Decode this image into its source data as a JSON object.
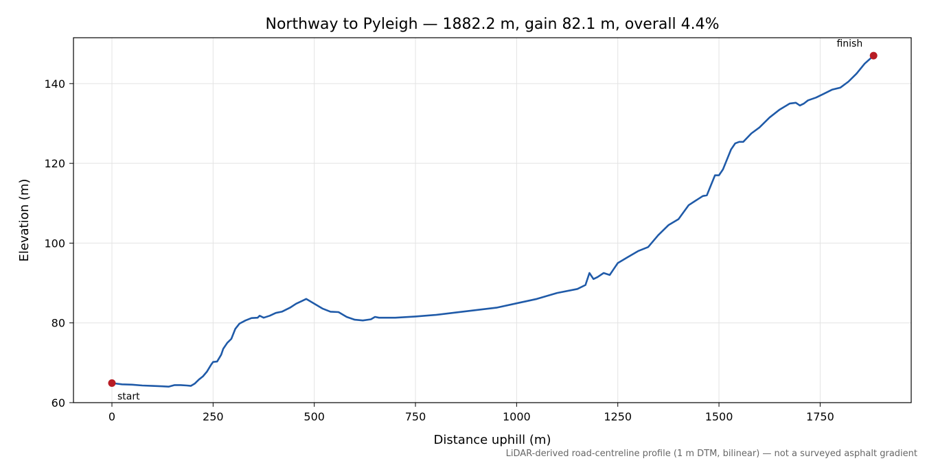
{
  "chart_data": {
    "type": "line",
    "title": "Northway to Pyleigh — 1882.2 m, gain 82.1 m, overall 4.4%",
    "xlabel": "Distance uphill (m)",
    "ylabel": "Elevation (m)",
    "xlim": [
      -95,
      1975
    ],
    "ylim": [
      60,
      151.5
    ],
    "xticks": [
      0,
      250,
      500,
      750,
      1000,
      1250,
      1500,
      1750
    ],
    "yticks": [
      60,
      80,
      100,
      120,
      140
    ],
    "grid": true,
    "line_color": "#1f5aa8",
    "marker_color": "#b81c24",
    "note": "LiDAR-derived road-centreline profile (1 m DTM, bilinear) — not a surveyed asphalt gradient",
    "annotations": [
      {
        "text": "start",
        "x": 0,
        "y": 64.9
      },
      {
        "text": "finish",
        "x": 1882,
        "y": 147.0
      }
    ],
    "series": [
      {
        "x": [
          0,
          25,
          50,
          75,
          100,
          125,
          140,
          155,
          170,
          185,
          195,
          205,
          215,
          225,
          235,
          245,
          250,
          260,
          270,
          275,
          285,
          295,
          305,
          315,
          330,
          345,
          360,
          365,
          375,
          390,
          405,
          420,
          440,
          455,
          470,
          480,
          490,
          500,
          520,
          540,
          560,
          580,
          600,
          620,
          640,
          650,
          660,
          700,
          750,
          800,
          850,
          900,
          950,
          1000,
          1050,
          1100,
          1150,
          1170,
          1180,
          1190,
          1200,
          1215,
          1230,
          1240,
          1250,
          1275,
          1300,
          1325,
          1350,
          1375,
          1400,
          1425,
          1440,
          1460,
          1470,
          1480,
          1490,
          1500,
          1510,
          1520,
          1530,
          1540,
          1550,
          1560,
          1580,
          1600,
          1625,
          1650,
          1675,
          1690,
          1700,
          1710,
          1720,
          1740,
          1760,
          1780,
          1800,
          1820,
          1840,
          1860,
          1882
        ],
        "values": [
          64.9,
          64.6,
          64.5,
          64.3,
          64.2,
          64.1,
          64.0,
          64.4,
          64.4,
          64.3,
          64.2,
          64.8,
          65.8,
          66.6,
          67.8,
          69.5,
          70.2,
          70.3,
          72.0,
          73.5,
          75.0,
          76.0,
          78.5,
          79.8,
          80.6,
          81.2,
          81.3,
          81.8,
          81.3,
          81.8,
          82.5,
          82.8,
          83.8,
          84.8,
          85.5,
          86.0,
          85.4,
          84.8,
          83.6,
          82.8,
          82.7,
          81.5,
          80.8,
          80.6,
          80.9,
          81.5,
          81.3,
          81.3,
          81.6,
          82.0,
          82.6,
          83.2,
          83.8,
          84.9,
          86.0,
          87.5,
          88.5,
          89.5,
          92.5,
          91.0,
          91.5,
          92.5,
          92.0,
          93.5,
          95.0,
          96.5,
          98.0,
          99.0,
          102.0,
          104.5,
          106.0,
          109.5,
          110.5,
          111.8,
          112.0,
          114.5,
          117.0,
          117.0,
          118.5,
          121.0,
          123.5,
          125.0,
          125.4,
          125.4,
          127.5,
          129.0,
          131.5,
          133.5,
          135.0,
          135.2,
          134.5,
          135.0,
          135.8,
          136.5,
          137.5,
          138.5,
          139.0,
          140.5,
          142.5,
          145.0,
          147.0
        ]
      }
    ]
  }
}
